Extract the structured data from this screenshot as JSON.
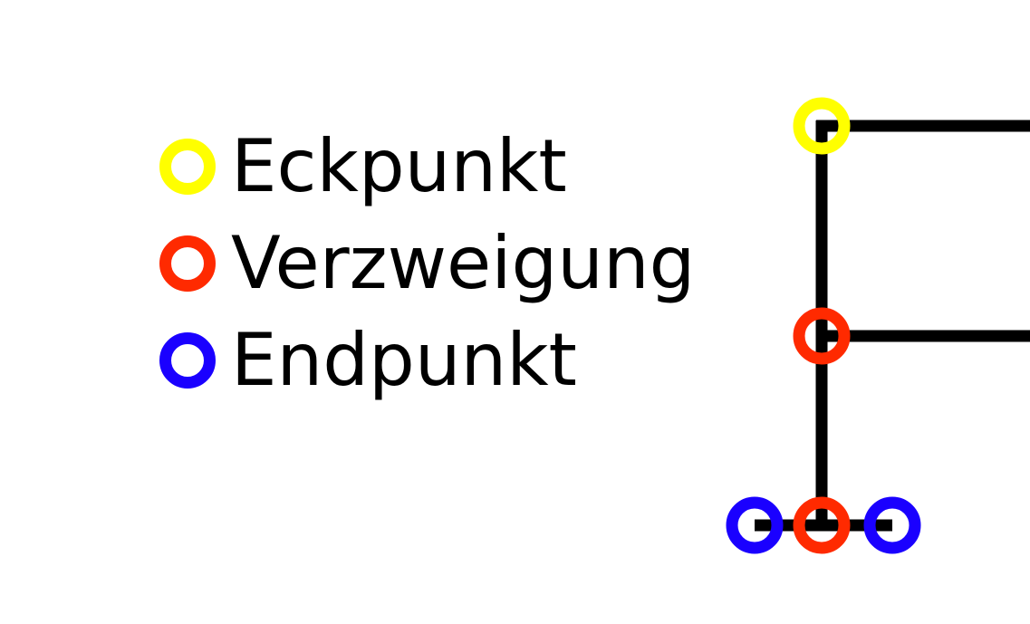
{
  "legend": {
    "items": [
      {
        "key": "corner",
        "label": "Eckpunkt",
        "color": "#ffff00"
      },
      {
        "key": "branch",
        "label": "Verzweigung",
        "color": "#ff2a00"
      },
      {
        "key": "end",
        "label": "Endpunkt",
        "color": "#1a00ff"
      }
    ]
  },
  "diagram": {
    "line_color": "#000000",
    "node_types": [
      "corner",
      "branch",
      "branch",
      "end",
      "end"
    ]
  }
}
